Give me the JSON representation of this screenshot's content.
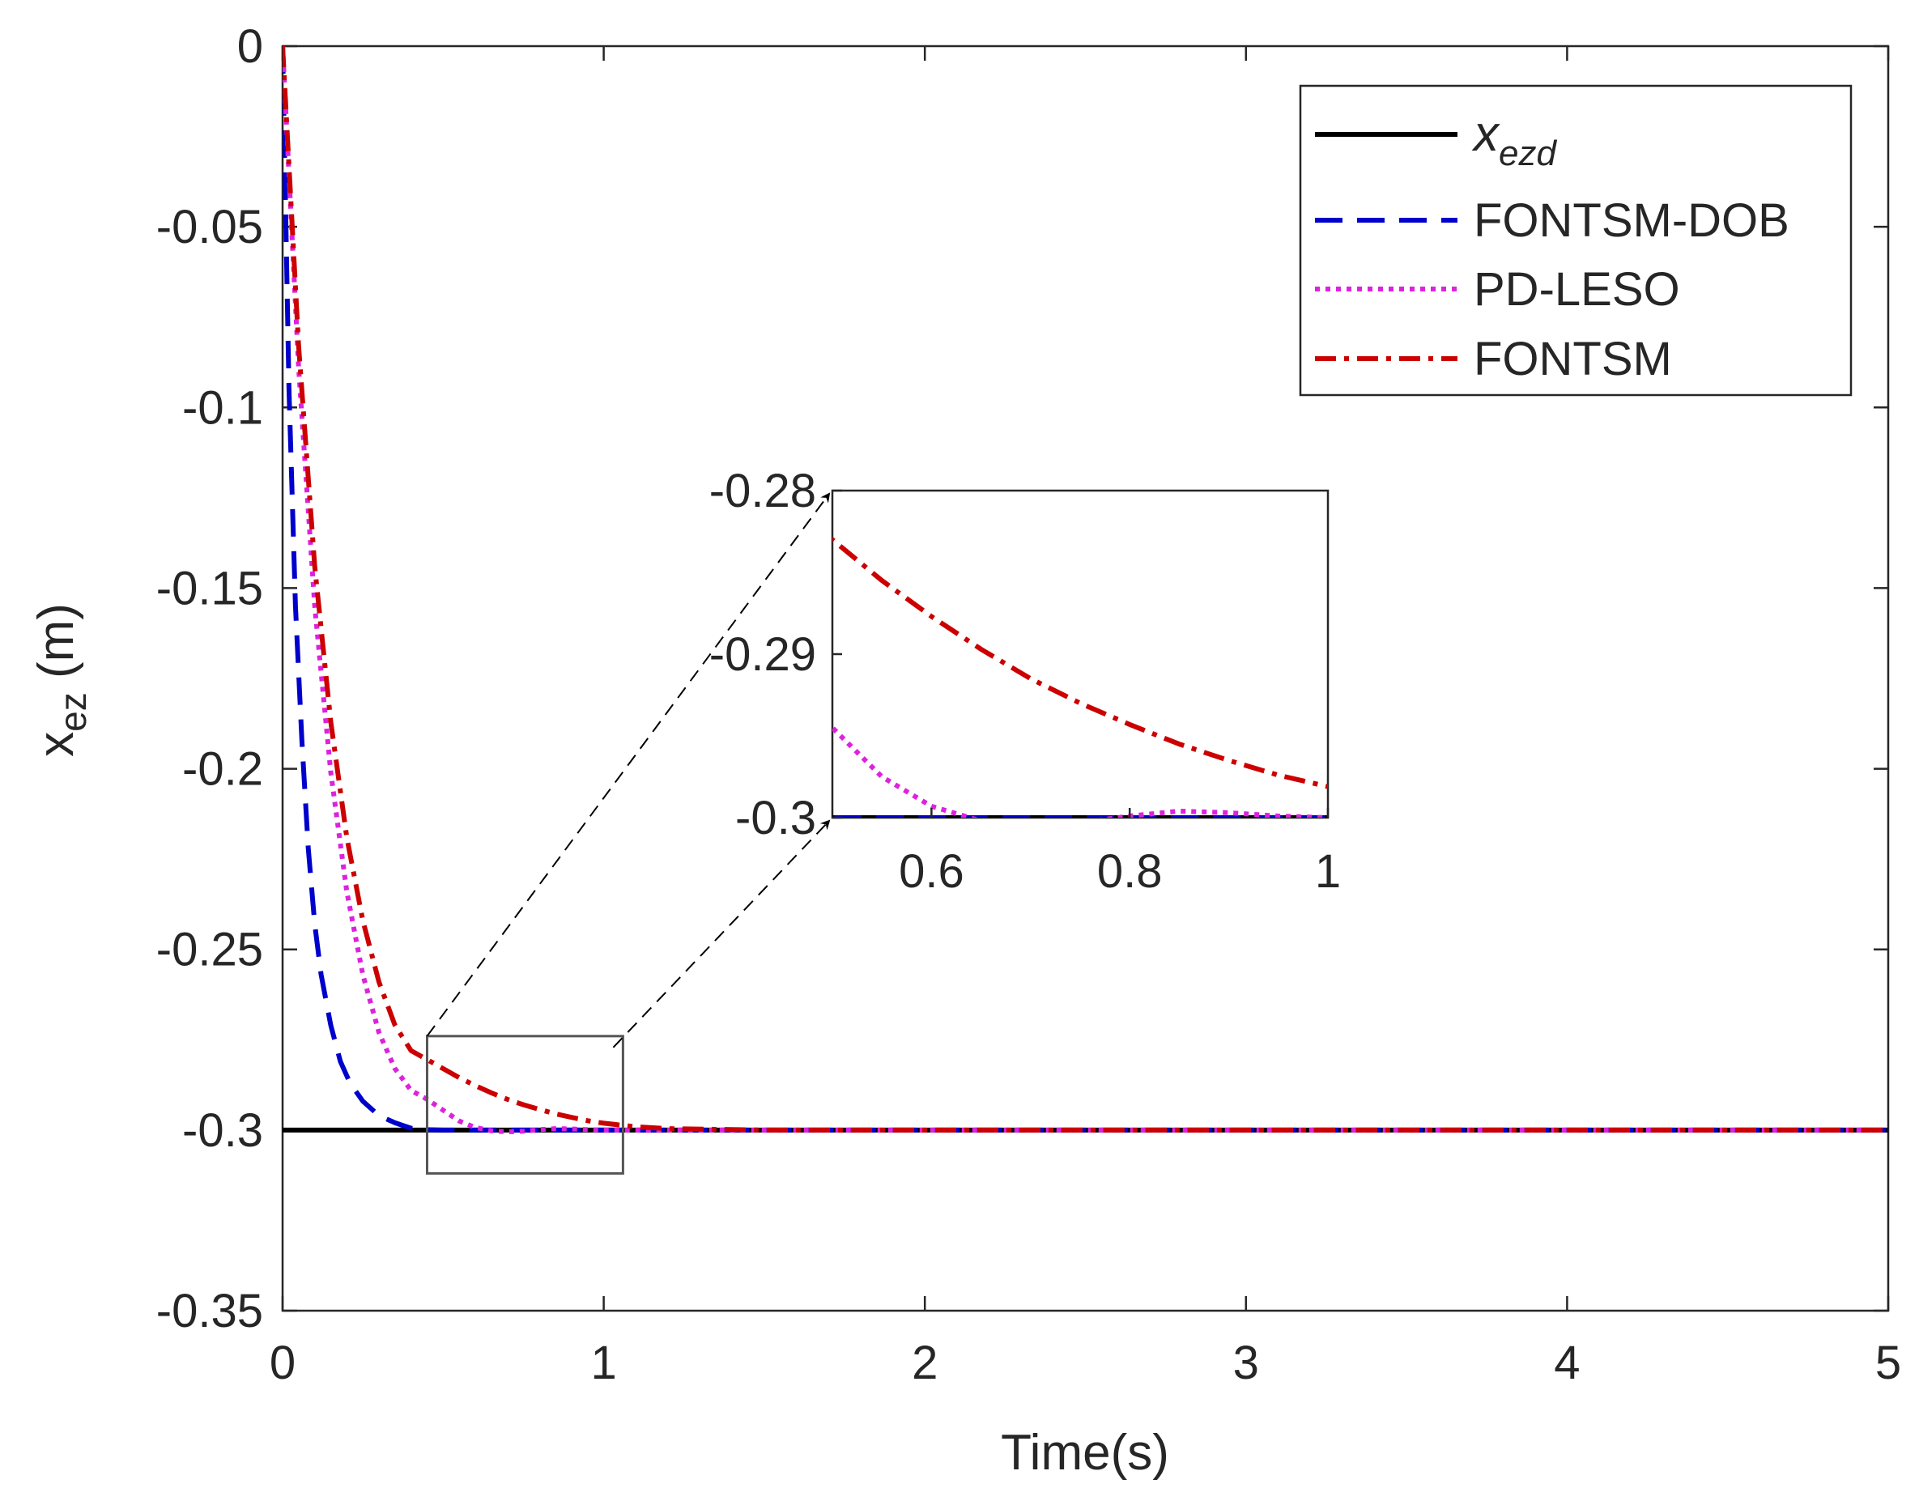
{
  "chart_data": {
    "type": "line",
    "xlabel": "Time(s)",
    "ylabel": {
      "base": "x",
      "subscript": "ez",
      "unit": " (m)"
    },
    "xlim": [
      0,
      5
    ],
    "ylim": [
      -0.35,
      0
    ],
    "xticks": [
      0,
      1,
      2,
      3,
      4,
      5
    ],
    "xtick_labels": [
      "0",
      "1",
      "2",
      "3",
      "4",
      "5"
    ],
    "yticks": [
      0,
      -0.05,
      -0.1,
      -0.15,
      -0.2,
      -0.25,
      -0.3,
      -0.35
    ],
    "ytick_labels": [
      "0",
      "-0.05",
      "-0.1",
      "-0.15",
      "-0.2",
      "-0.25",
      "-0.3",
      "-0.35"
    ],
    "grid": false,
    "legend_position": "top-right",
    "series": [
      {
        "name": "x_ezd",
        "legend_label": {
          "base": "x",
          "subscript": "ezd"
        },
        "style": "solid",
        "color": "#000000",
        "x": [
          0,
          5
        ],
        "y": [
          -0.3,
          -0.3
        ]
      },
      {
        "name": "FONTSM-DOB",
        "legend_label": "FONTSM-DOB",
        "style": "dashed",
        "color": "#0000cc",
        "x": [
          0,
          0.02,
          0.04,
          0.06,
          0.08,
          0.1,
          0.12,
          0.15,
          0.18,
          0.21,
          0.25,
          0.3,
          0.35,
          0.4,
          0.45,
          0.5,
          1,
          5
        ],
        "y": [
          0,
          -0.095,
          -0.155,
          -0.192,
          -0.222,
          -0.243,
          -0.257,
          -0.271,
          -0.281,
          -0.287,
          -0.292,
          -0.296,
          -0.298,
          -0.2995,
          -0.2999,
          -0.3,
          -0.3,
          -0.3
        ]
      },
      {
        "name": "PD-LESO",
        "legend_label": "PD-LESO",
        "style": "dotted",
        "color": "#dd22dd",
        "x": [
          0,
          0.05,
          0.1,
          0.15,
          0.2,
          0.25,
          0.3,
          0.35,
          0.4,
          0.45,
          0.5,
          0.55,
          0.6,
          0.65,
          0.7,
          0.75,
          0.8,
          0.85,
          0.9,
          0.95,
          1.0,
          1.2,
          1.5,
          2,
          3,
          4,
          5
        ],
        "y": [
          0,
          -0.089,
          -0.155,
          -0.201,
          -0.234,
          -0.257,
          -0.273,
          -0.283,
          -0.289,
          -0.2915,
          -0.2945,
          -0.2975,
          -0.2993,
          -0.3002,
          -0.3005,
          -0.3003,
          -0.2999,
          -0.2996,
          -0.2997,
          -0.2999,
          -0.3,
          -0.3,
          -0.3,
          -0.3,
          -0.3,
          -0.3,
          -0.3
        ]
      },
      {
        "name": "FONTSM",
        "legend_label": "FONTSM",
        "style": "dashdot",
        "color": "#cc0000",
        "x": [
          0,
          0.05,
          0.1,
          0.15,
          0.2,
          0.25,
          0.3,
          0.35,
          0.4,
          0.45,
          0.5,
          0.55,
          0.6,
          0.65,
          0.7,
          0.75,
          0.8,
          0.85,
          0.9,
          0.95,
          1.0,
          1.1,
          1.2,
          1.5,
          2,
          3,
          4,
          5
        ],
        "y": [
          0,
          -0.083,
          -0.144,
          -0.187,
          -0.219,
          -0.242,
          -0.259,
          -0.271,
          -0.278,
          -0.2805,
          -0.283,
          -0.2855,
          -0.2877,
          -0.2897,
          -0.2915,
          -0.293,
          -0.2943,
          -0.2955,
          -0.2965,
          -0.2974,
          -0.2981,
          -0.2991,
          -0.2996,
          -0.3,
          -0.3,
          -0.3,
          -0.3,
          -0.3
        ]
      }
    ],
    "inset": {
      "xlim": [
        0.5,
        1
      ],
      "ylim": [
        -0.3,
        -0.28
      ],
      "xticks": [
        0.6,
        0.8,
        1
      ],
      "xtick_labels": [
        "0.6",
        "0.8",
        "1"
      ],
      "yticks": [
        -0.28,
        -0.29,
        -0.3
      ],
      "ytick_labels": [
        "-0.28",
        "-0.29",
        "-0.3"
      ],
      "highlight_region": {
        "x": [
          0.45,
          1.06
        ],
        "y": [
          -0.312,
          -0.274
        ]
      }
    }
  }
}
